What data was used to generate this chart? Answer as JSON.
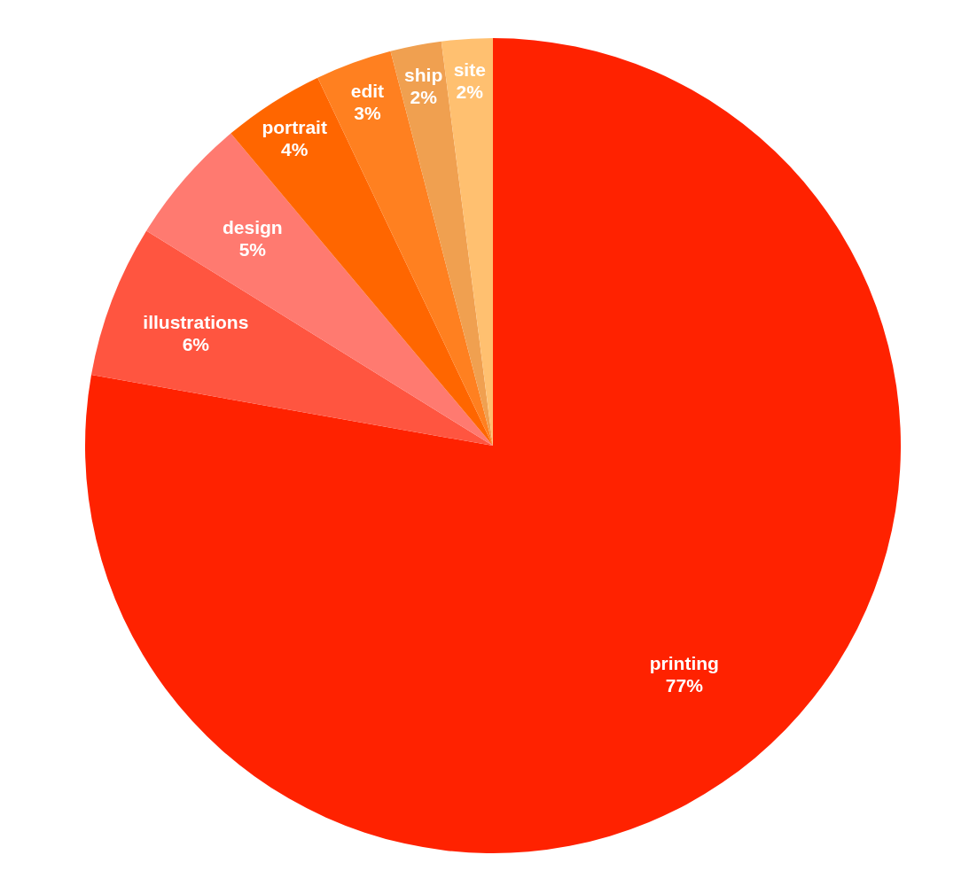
{
  "chart_data": {
    "type": "pie",
    "categories": [
      "printing",
      "illustrations",
      "design",
      "portrait",
      "edit",
      "ship",
      "site"
    ],
    "values": [
      77,
      6,
      5,
      4,
      3,
      2,
      2
    ],
    "value_labels": [
      "77%",
      "6%",
      "5%",
      "4%",
      "3%",
      "2%",
      "2%"
    ],
    "colors": [
      "#ff2200",
      "#ff5540",
      "#ff7a70",
      "#ff6600",
      "#ff8020",
      "#f0a050",
      "#ffc070"
    ]
  }
}
